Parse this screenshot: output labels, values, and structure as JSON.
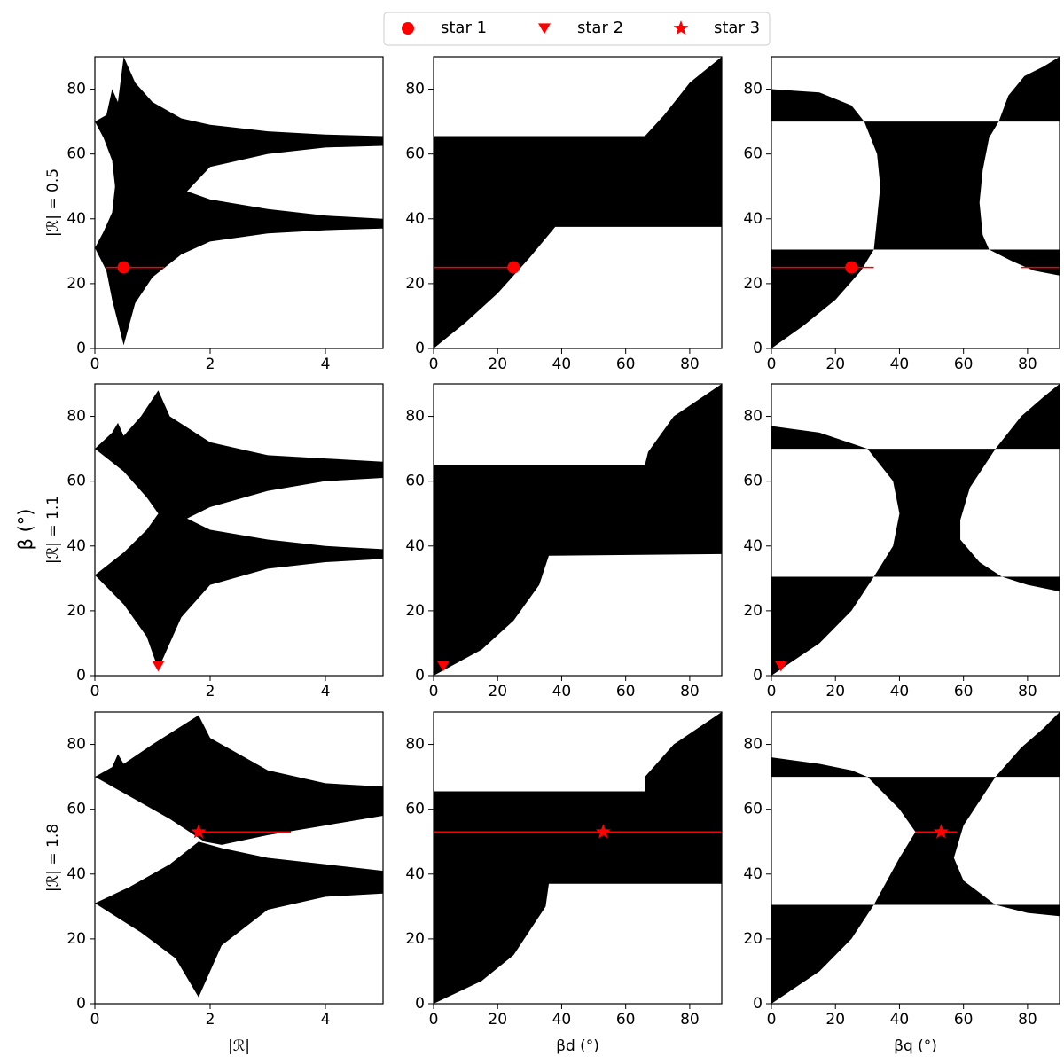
{
  "figure": {
    "ylabel": "β (°)"
  },
  "chart_data": [
    {
      "type": "region",
      "ylabel": "|ℛ| = 0.5",
      "xlim": [
        0,
        5
      ],
      "ylim": [
        0,
        90
      ],
      "xticks": [
        0,
        2,
        4
      ],
      "yticks": [
        0,
        20,
        40,
        60,
        80
      ],
      "region_color": "#000000",
      "regions": [
        {
          "x": [
            0,
            0.2,
            0.3,
            0.4,
            0.5,
            0.7,
            1,
            1.5,
            2,
            3,
            4,
            5,
            5,
            4,
            3,
            2,
            1.6,
            2,
            3,
            4,
            5,
            5,
            4,
            3,
            2,
            1.5,
            1,
            0.7,
            0.5,
            0.4,
            0.3,
            0.2,
            0,
            0.15,
            0.3,
            0.35,
            0.3,
            0.15
          ],
          "y": [
            70,
            72,
            80,
            76,
            90,
            82,
            76,
            71,
            69,
            67,
            66,
            65.5,
            62.5,
            62,
            60,
            56,
            48.5,
            46,
            43,
            41,
            40,
            37,
            36.5,
            35.5,
            33,
            29,
            22,
            14,
            1,
            8,
            15,
            24,
            31,
            36,
            42,
            50,
            58,
            65
          ]
        }
      ],
      "lines": [
        {
          "color": "#ff0000",
          "x": [
            0.2,
            1.2
          ],
          "y": [
            25,
            25
          ]
        }
      ],
      "series": [
        {
          "name": "star 1",
          "color": "#ff0000",
          "marker": "o",
          "x": [
            0.5
          ],
          "y": [
            25
          ]
        }
      ]
    },
    {
      "type": "region",
      "xlim": [
        0,
        90
      ],
      "ylim": [
        0,
        90
      ],
      "xticks": [
        0,
        20,
        40,
        60,
        80
      ],
      "yticks": [
        0,
        20,
        40,
        60,
        80
      ],
      "region_color": "#000000",
      "regions": [
        {
          "x": [
            0,
            10,
            20,
            30,
            38,
            90,
            90,
            80,
            72,
            66,
            0
          ],
          "y": [
            0,
            8,
            17,
            28,
            37.5,
            37.5,
            90,
            82,
            72,
            65.5,
            65.5
          ]
        }
      ],
      "lines": [
        {
          "color": "#ff0000",
          "x": [
            0,
            25
          ],
          "y": [
            25,
            25
          ]
        }
      ],
      "series": [
        {
          "color": "#ff0000",
          "marker": "o",
          "x": [
            25
          ],
          "y": [
            25
          ]
        }
      ]
    },
    {
      "type": "region",
      "xlim": [
        0,
        90
      ],
      "ylim": [
        0,
        90
      ],
      "xticks": [
        0,
        20,
        40,
        60,
        80
      ],
      "yticks": [
        0,
        20,
        40,
        60,
        80
      ],
      "region_color": "#000000",
      "regions": [
        {
          "x": [
            0,
            15,
            25,
            29,
            0
          ],
          "y": [
            80,
            79,
            75,
            70,
            70
          ]
        },
        {
          "x": [
            29,
            33,
            34,
            33,
            32,
            68,
            66,
            65,
            66,
            68,
            71
          ],
          "y": [
            70,
            60,
            50,
            40,
            30.5,
            30.5,
            35,
            45,
            55,
            65,
            70
          ]
        },
        {
          "x": [
            68,
            75,
            82,
            90,
            90
          ],
          "y": [
            30.5,
            27,
            24,
            22.5,
            30.5
          ]
        },
        {
          "x": [
            71,
            74,
            79,
            85,
            90,
            90
          ],
          "y": [
            70,
            78,
            84,
            87,
            90,
            70
          ]
        },
        {
          "x": [
            0,
            10,
            20,
            28,
            32,
            0
          ],
          "y": [
            0,
            7,
            15,
            24,
            30.5,
            30.5
          ]
        }
      ],
      "lines": [
        {
          "color": "#ff0000",
          "x": [
            0,
            32
          ],
          "y": [
            25,
            25
          ]
        },
        {
          "color": "#ff0000",
          "x": [
            78,
            90
          ],
          "y": [
            25,
            25
          ]
        }
      ],
      "series": [
        {
          "color": "#ff0000",
          "marker": "o",
          "x": [
            25
          ],
          "y": [
            25
          ]
        }
      ]
    },
    {
      "type": "region",
      "ylabel": "|ℛ| = 1.1",
      "xlim": [
        0,
        5
      ],
      "ylim": [
        0,
        90
      ],
      "xticks": [
        0,
        2,
        4
      ],
      "yticks": [
        0,
        20,
        40,
        60,
        80
      ],
      "region_color": "#000000",
      "regions": [
        {
          "x": [
            0,
            0.3,
            0.4,
            0.5,
            0.8,
            1.1,
            1.3,
            2,
            3,
            4,
            5,
            5,
            4,
            3,
            2,
            1.6,
            2,
            3,
            4,
            5,
            5,
            4,
            3,
            2,
            1.5,
            1.1,
            0.9,
            0.5,
            0,
            0.5,
            0.9,
            1.1,
            0.9,
            0.5
          ],
          "y": [
            70,
            75,
            78,
            74,
            80,
            88,
            80,
            72,
            68,
            67,
            66,
            61,
            60,
            57,
            52,
            48.5,
            45,
            42,
            40,
            39,
            36,
            35,
            33,
            28,
            18,
            2,
            12,
            22,
            31,
            38,
            45,
            50,
            55,
            63
          ]
        }
      ],
      "lines": [],
      "series": [
        {
          "name": "star 2",
          "color": "#ff0000",
          "marker": "v",
          "x": [
            1.1
          ],
          "y": [
            3
          ]
        }
      ]
    },
    {
      "type": "region",
      "xlim": [
        0,
        90
      ],
      "ylim": [
        0,
        90
      ],
      "xticks": [
        0,
        20,
        40,
        60,
        80
      ],
      "yticks": [
        0,
        20,
        40,
        60,
        80
      ],
      "region_color": "#000000",
      "regions": [
        {
          "x": [
            0,
            15,
            25,
            33,
            36,
            90,
            90,
            75,
            67,
            66,
            0
          ],
          "y": [
            0,
            8,
            17,
            28,
            37,
            37.5,
            90,
            80,
            69,
            65,
            65
          ]
        }
      ],
      "lines": [],
      "series": [
        {
          "color": "#ff0000",
          "marker": "v",
          "x": [
            3
          ],
          "y": [
            3
          ]
        }
      ]
    },
    {
      "type": "region",
      "xlim": [
        0,
        90
      ],
      "ylim": [
        0,
        90
      ],
      "xticks": [
        0,
        20,
        40,
        60,
        80
      ],
      "yticks": [
        0,
        20,
        40,
        60,
        80
      ],
      "region_color": "#000000",
      "regions": [
        {
          "x": [
            0,
            15,
            30,
            0
          ],
          "y": [
            77,
            75,
            70,
            70
          ]
        },
        {
          "x": [
            30,
            38,
            40,
            38,
            32,
            72,
            65,
            59,
            59,
            62,
            70
          ],
          "y": [
            70,
            60,
            50,
            40,
            30.5,
            30.5,
            35,
            42,
            48,
            58,
            70
          ]
        },
        {
          "x": [
            72,
            80,
            90,
            90
          ],
          "y": [
            30.5,
            28,
            26,
            30.5
          ]
        },
        {
          "x": [
            70,
            78,
            85,
            90,
            90
          ],
          "y": [
            70,
            80,
            86,
            90,
            70
          ]
        },
        {
          "x": [
            0,
            15,
            25,
            32,
            0
          ],
          "y": [
            0,
            10,
            20,
            30.5,
            30.5
          ]
        }
      ],
      "lines": [],
      "series": [
        {
          "color": "#ff0000",
          "marker": "v",
          "x": [
            3
          ],
          "y": [
            3
          ]
        }
      ]
    },
    {
      "type": "region",
      "ylabel": "|ℛ| = 1.8",
      "xlabel": "|ℛ|",
      "xlim": [
        0,
        5
      ],
      "ylim": [
        0,
        90
      ],
      "xticks": [
        0,
        2,
        4
      ],
      "yticks": [
        0,
        20,
        40,
        60,
        80
      ],
      "region_color": "#000000",
      "regions": [
        {
          "x": [
            0,
            0.3,
            0.4,
            0.5,
            1,
            1.8,
            2,
            3,
            4,
            5,
            5,
            4,
            3,
            2.2,
            1.9,
            1.3,
            0.6
          ],
          "y": [
            70,
            73,
            77,
            74,
            80,
            89,
            82,
            72,
            68,
            67,
            58,
            55,
            52,
            49,
            50,
            57,
            64
          ]
        },
        {
          "x": [
            0,
            0.6,
            1.3,
            1.8,
            2.2,
            3,
            4,
            5,
            5,
            4,
            3,
            2.2,
            1.8,
            1.4,
            0.8
          ],
          "y": [
            31,
            36,
            43,
            50,
            48,
            45,
            43,
            41,
            34,
            33,
            29,
            18,
            2,
            14,
            22
          ]
        }
      ],
      "lines": [
        {
          "color": "#ff0000",
          "x": [
            1.75,
            3.4
          ],
          "y": [
            53,
            53
          ]
        }
      ],
      "series": [
        {
          "name": "star 3",
          "color": "#ff0000",
          "marker": "*",
          "x": [
            1.8
          ],
          "y": [
            53
          ]
        }
      ]
    },
    {
      "type": "region",
      "xlabel": "βd (°)",
      "xlim": [
        0,
        90
      ],
      "ylim": [
        0,
        90
      ],
      "xticks": [
        0,
        20,
        40,
        60,
        80
      ],
      "yticks": [
        0,
        20,
        40,
        60,
        80
      ],
      "region_color": "#000000",
      "regions": [
        {
          "x": [
            0,
            15,
            25,
            35,
            36,
            90,
            90,
            75,
            66,
            66,
            0
          ],
          "y": [
            0,
            7,
            15,
            30,
            37,
            37,
            90,
            80,
            70,
            65.5,
            65.5
          ]
        }
      ],
      "lines": [
        {
          "color": "#ff0000",
          "x": [
            0,
            90
          ],
          "y": [
            53,
            53
          ]
        }
      ],
      "series": [
        {
          "color": "#ff0000",
          "marker": "*",
          "x": [
            53
          ],
          "y": [
            53
          ]
        }
      ]
    },
    {
      "type": "region",
      "xlabel": "βq (°)",
      "xlim": [
        0,
        90
      ],
      "ylim": [
        0,
        90
      ],
      "xticks": [
        0,
        20,
        40,
        60,
        80
      ],
      "yticks": [
        0,
        20,
        40,
        60,
        80
      ],
      "region_color": "#000000",
      "regions": [
        {
          "x": [
            0,
            15,
            25,
            30,
            0
          ],
          "y": [
            76,
            74,
            72,
            70,
            70
          ]
        },
        {
          "x": [
            30,
            40,
            45,
            40,
            32,
            70,
            60,
            57,
            60,
            70
          ],
          "y": [
            70,
            60,
            53,
            45,
            30.5,
            30.5,
            38,
            45,
            55,
            70
          ]
        },
        {
          "x": [
            70,
            80,
            90,
            90
          ],
          "y": [
            30.5,
            28,
            27,
            30.5
          ]
        },
        {
          "x": [
            70,
            78,
            85,
            90,
            90
          ],
          "y": [
            70,
            79,
            85,
            90,
            70
          ]
        },
        {
          "x": [
            0,
            15,
            25,
            32,
            0
          ],
          "y": [
            0,
            10,
            20,
            30.5,
            30.5
          ]
        }
      ],
      "lines": [
        {
          "color": "#ff0000",
          "x": [
            45,
            58
          ],
          "y": [
            53,
            53
          ]
        }
      ],
      "series": [
        {
          "color": "#ff0000",
          "marker": "*",
          "x": [
            53
          ],
          "y": [
            53
          ]
        }
      ]
    }
  ]
}
